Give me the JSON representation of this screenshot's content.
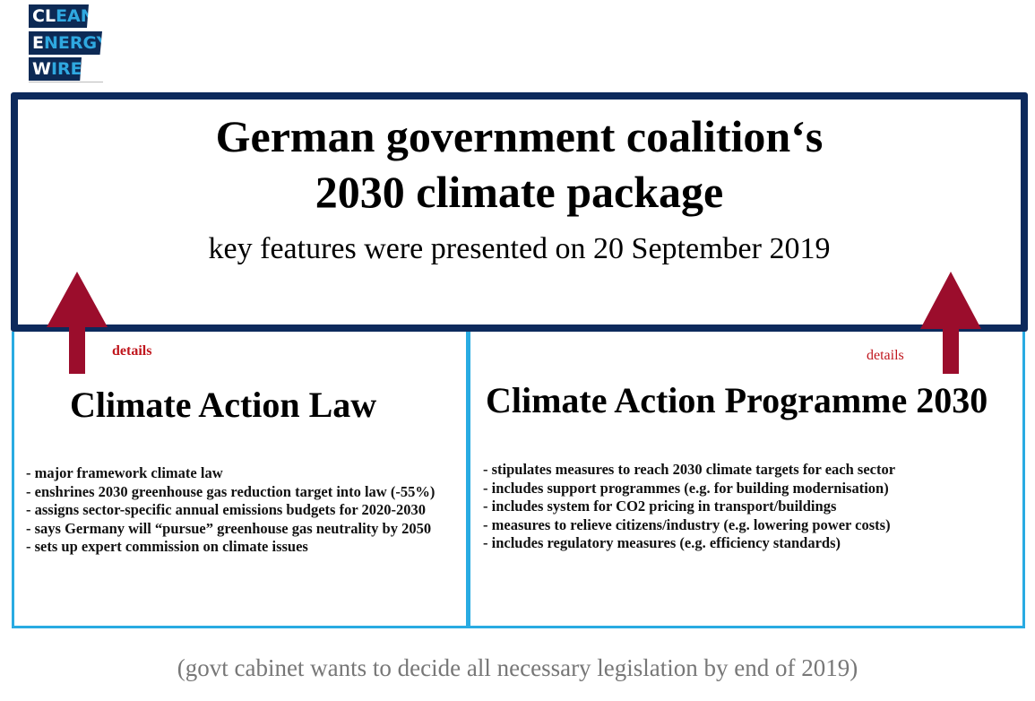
{
  "logo": {
    "line1": [
      "CL",
      "EAN"
    ],
    "line2": [
      "E",
      "NERGY"
    ],
    "line3": [
      "W",
      "IRE"
    ]
  },
  "header": {
    "title_line1": "German government coalition‘s",
    "title_line2": "2030 climate package",
    "subtitle": "key features were presented on 20 September 2019"
  },
  "left": {
    "details": "details",
    "title": "Climate Action Law",
    "items": [
      "- major framework climate law",
      "- enshrines 2030 greenhouse gas reduction target into law (-55%)",
      "- assigns sector-specific annual emissions budgets for 2020-2030",
      "- says Germany will “pursue” greenhouse gas neutrality by 2050",
      "- sets up expert commission on climate issues"
    ]
  },
  "right": {
    "details": "details",
    "title": "Climate Action Programme 2030",
    "items": [
      "- stipulates measures to reach 2030 climate targets for each sector",
      "- includes support programmes (e.g. for building modernisation)",
      "- includes system for CO2 pricing in transport/buildings",
      "- measures to relieve citizens/industry (e.g. lowering power costs)",
      "- includes regulatory measures (e.g. efficiency standards)"
    ]
  },
  "footer": "(govt cabinet wants to decide all necessary legislation by end of 2019)",
  "colors": {
    "navy": "#0d2a5c",
    "light_blue": "#29abe2",
    "arrow_red": "#9b0d2c",
    "details_red": "#c0161d"
  }
}
